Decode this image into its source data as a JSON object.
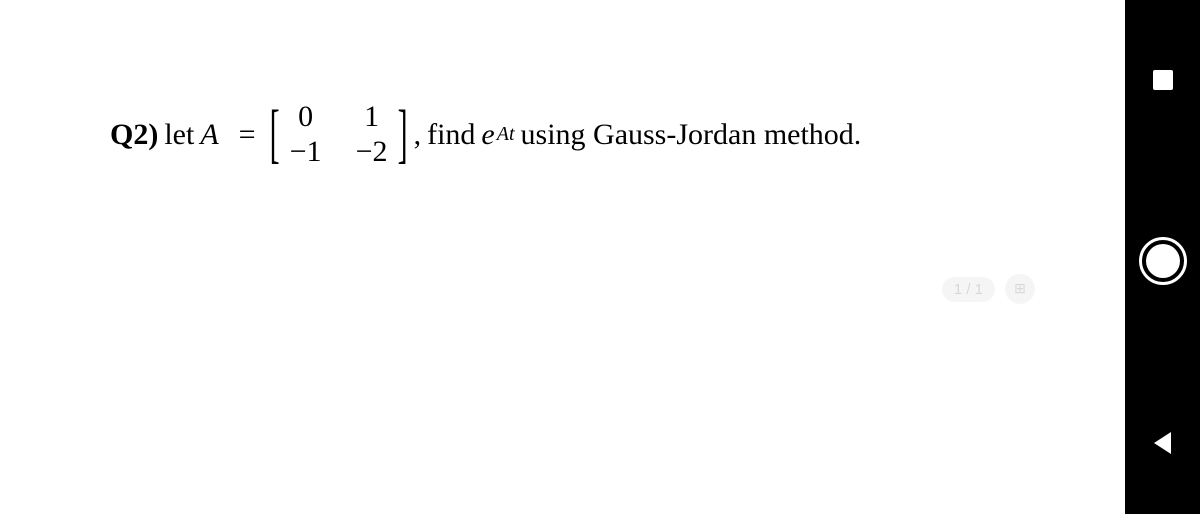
{
  "question": {
    "label": "Q2)",
    "let_text": "let",
    "variable": "A",
    "equals": "=",
    "matrix": {
      "rows": [
        [
          "0",
          "1"
        ],
        [
          "−1",
          "−2"
        ]
      ]
    },
    "comma": ",",
    "trail_before_e": "find",
    "e_symbol": "e",
    "exponent": "At",
    "trail_after_e": "using Gauss-Jordan method."
  },
  "overlay": {
    "page_counter": "1 / 1",
    "grid_icon": "⊞"
  },
  "sidebar": {
    "stop_label": "stop",
    "shutter_label": "shutter",
    "back_label": "back"
  },
  "colors": {
    "page_bg": "#ffffff",
    "frame_bg": "#000000",
    "text": "#000000",
    "overlay_faint": "rgba(0,0,0,0.08)"
  }
}
